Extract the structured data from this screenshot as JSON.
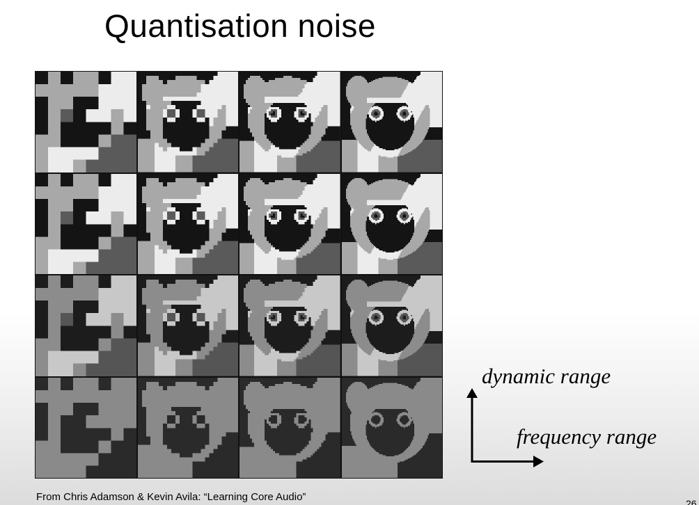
{
  "slide": {
    "title": "Quantisation noise",
    "credit": "From Chris Adamson & Kevin Avila:  “Learning Core Audio”",
    "page_number": "26"
  },
  "diagram": {
    "vertical_axis_label": "dynamic range",
    "horizontal_axis_label": "frequency range"
  },
  "image_grid": {
    "rows": 4,
    "columns": 4,
    "subject": "lemur",
    "colors": {
      "background": "#222222",
      "fur_light": "#e6e6e6",
      "face_dark": "#1a1a1a"
    },
    "row_gray_levels": [
      [
        "#141414",
        "#5a5a5a",
        "#a8a8a8",
        "#ececec"
      ],
      [
        "#141414",
        "#5a5a5a",
        "#a8a8a8",
        "#ececec"
      ],
      [
        "#1c1c1c",
        "#555555",
        "#8c8c8c",
        "#c8c8c8"
      ],
      [
        "#2a2a2a",
        "#2a2a2a",
        "#8a8a8a",
        "#8a8a8a"
      ]
    ],
    "column_resolution": [
      8,
      24,
      48,
      96
    ]
  }
}
